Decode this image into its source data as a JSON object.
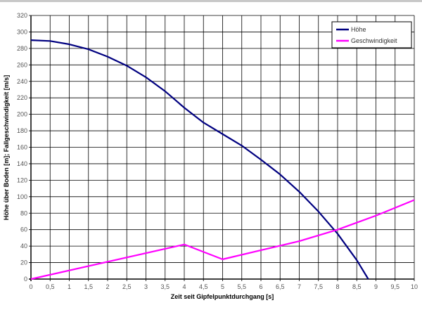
{
  "chart_data": {
    "type": "line",
    "title": "",
    "xlabel": "Zeit seit Gipfelpunktdurchgang [s]",
    "ylabel": "Höhe über Boden [m]; Fallgeschwindigkeit [m/s]",
    "xlim": [
      0,
      10
    ],
    "ylim": [
      0,
      320
    ],
    "xticks": [
      "0",
      "0,5",
      "1",
      "1,5",
      "2",
      "2,5",
      "3",
      "3,5",
      "4",
      "4,5",
      "5",
      "5,5",
      "6",
      "6,5",
      "7",
      "7,5",
      "8",
      "8,5",
      "9",
      "9,5",
      "10"
    ],
    "yticks": [
      "0",
      "20",
      "40",
      "60",
      "80",
      "100",
      "120",
      "140",
      "160",
      "180",
      "200",
      "220",
      "240",
      "260",
      "280",
      "300",
      "320"
    ],
    "grid": true,
    "legend_position": "top-right",
    "series": [
      {
        "name": "Höhe",
        "color": "#000080",
        "x": [
          0,
          0.5,
          1,
          1.5,
          2,
          2.5,
          3,
          3.5,
          4,
          4.5,
          5,
          5.5,
          6,
          6.5,
          7,
          7.5,
          8,
          8.5,
          8.8
        ],
        "y": [
          290,
          289,
          285,
          279,
          270,
          259,
          245,
          228,
          208,
          190,
          176,
          162,
          145,
          127,
          106,
          82,
          55,
          23,
          0
        ]
      },
      {
        "name": "Geschwindigkeit",
        "color": "#ff00ff",
        "x": [
          0,
          4,
          5,
          6,
          7,
          8,
          9,
          10
        ],
        "y": [
          0,
          42,
          24,
          35,
          46,
          60,
          77,
          96
        ]
      }
    ]
  }
}
